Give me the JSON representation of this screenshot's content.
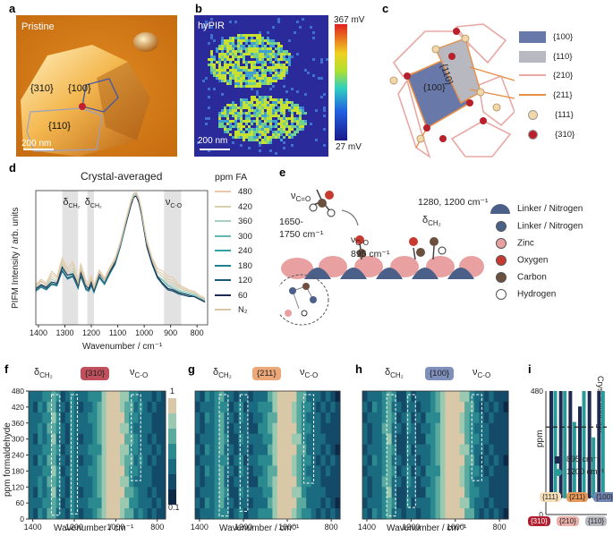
{
  "panel_labels": [
    "a",
    "b",
    "c",
    "d",
    "e",
    "f",
    "g",
    "h",
    "i"
  ],
  "panel_a": {
    "label": "Pristine",
    "scale_bar": "200 nm",
    "facets": [
      "{310}",
      "{100}",
      "{110}"
    ]
  },
  "panel_b": {
    "label": "hyPIR",
    "scale_bar": "200 nm",
    "colorbar_max": "367 mV",
    "colorbar_min": "27 mV"
  },
  "panel_c": {
    "inner_labels": [
      "{100}",
      "{110}"
    ],
    "legend": [
      {
        "label": "{100}",
        "color": "#6878a8"
      },
      {
        "label": "{110}",
        "color": "#b8b8c0"
      },
      {
        "label": "{210}",
        "color": "#e8a8a4"
      },
      {
        "label": "{211}",
        "color": "#e89048"
      },
      {
        "label": "{111}",
        "color": "#f2d8a8"
      },
      {
        "label": "{310}",
        "color": "#b8202c"
      }
    ]
  },
  "panel_d": {
    "title": "Crystal-averaged",
    "ylabel": "PIFM Intensity / arb. units",
    "xlabel": "Wavenumber / cm⁻¹",
    "bands": [
      {
        "sym": "δ",
        "sub": "CH₂"
      },
      {
        "sym": "δ",
        "sub": "CH₂"
      },
      {
        "sym": "ν",
        "sub": "C-O"
      }
    ],
    "legend_title": "ppm FA",
    "legend": [
      {
        "label": "480",
        "color": "#e8c8a8"
      },
      {
        "label": "420",
        "color": "#d8d0b0"
      },
      {
        "label": "360",
        "color": "#a8d0c0"
      },
      {
        "label": "300",
        "color": "#60b8b0"
      },
      {
        "label": "240",
        "color": "#30a0a0"
      },
      {
        "label": "180",
        "color": "#208090"
      },
      {
        "label": "120",
        "color": "#1e5878"
      },
      {
        "label": "60",
        "color": "#1e2a50"
      },
      {
        "label": "N₂",
        "color": "#d8c8a8"
      }
    ]
  },
  "panel_e": {
    "nu_co_double": "ν",
    "nu_co_double_sub": "C=O",
    "range_1": "1650-",
    "range_2": "1750 cm⁻¹",
    "nu_co": "ν",
    "nu_co_sub": "C-O",
    "nu_co_value": "895 cm⁻¹",
    "dch2_values": "1280, 1200 cm⁻¹",
    "dch2": "δ",
    "dch2_sub": "CH₂",
    "legend": [
      {
        "label": "Linker / Nitrogen",
        "color": "#4a6088",
        "shape": "dome"
      },
      {
        "label": "Linker / Nitrogen",
        "color": "#4a6088",
        "shape": "circle"
      },
      {
        "label": "Zinc",
        "color": "#e8a0a0",
        "shape": "circle"
      },
      {
        "label": "Oxygen",
        "color": "#c83a30",
        "shape": "circle"
      },
      {
        "label": "Carbon",
        "color": "#6b5040",
        "shape": "circle"
      },
      {
        "label": "Hydrogen",
        "color": "#ffffff",
        "shape": "circle"
      }
    ]
  },
  "heatmaps": {
    "ylabel": "ppm formaldehyde",
    "xlabel": "Wavenumber / cm⁻¹",
    "f": {
      "tag": "{310}",
      "tag_color": "#b8404c",
      "dch2": "δ",
      "dch2_sub": "CH₂",
      "nu": "ν",
      "nu_sub": "C-O"
    },
    "g": {
      "tag": "{211}",
      "tag_color": "#e8a070",
      "dch2": "δ",
      "dch2_sub": "CH₂",
      "nu": "ν",
      "nu_sub": "C-O"
    },
    "h": {
      "tag": "{100}",
      "tag_color": "#7484b0",
      "dch2": "δ",
      "dch2_sub": "CH₂",
      "nu": "ν",
      "nu_sub": "C-O"
    },
    "colorbar_max": "1",
    "colorbar_min": "0.1"
  },
  "panel_i": {
    "ylabel": "ppm",
    "side_label": "Crystal Average",
    "legend": [
      {
        "label": "895 cm⁻¹",
        "color": "#1e2a50"
      },
      {
        "label": "1200 cm⁻¹",
        "color": "#2a9a98"
      }
    ],
    "groups": [
      {
        "label": "{310}",
        "color": "#b02030"
      },
      {
        "label": "{210}",
        "color": "#e8b0a8"
      },
      {
        "label": "{110}",
        "color": "#b8b8c0"
      }
    ],
    "upper_tags": [
      {
        "label": "{111}",
        "color": "#f5e0b8"
      },
      {
        "label": "{211}",
        "color": "#e89858"
      },
      {
        "label": "{100}",
        "color": "#7484b0"
      }
    ]
  },
  "chart_data": [
    {
      "type": "line",
      "title": "Crystal-averaged",
      "xlabel": "Wavenumber / cm⁻¹",
      "ylabel": "PIFM Intensity / arb. units",
      "xlim": [
        1410,
        760
      ],
      "x_ticks": [
        1400,
        1300,
        1200,
        1100,
        1000,
        900,
        800
      ],
      "x": [
        1410,
        1390,
        1370,
        1350,
        1330,
        1310,
        1290,
        1270,
        1250,
        1240,
        1220,
        1210,
        1200,
        1190,
        1170,
        1150,
        1130,
        1110,
        1090,
        1070,
        1050,
        1040,
        1030,
        1020,
        1010,
        1000,
        990,
        970,
        950,
        930,
        910,
        890,
        870,
        850,
        830,
        810,
        790,
        770
      ],
      "series": [
        {
          "name": "480",
          "values": [
            0.3,
            0.34,
            0.31,
            0.4,
            0.36,
            0.5,
            0.42,
            0.47,
            0.33,
            0.46,
            0.33,
            0.31,
            0.37,
            0.29,
            0.41,
            0.35,
            0.43,
            0.5,
            0.62,
            0.78,
            0.93,
            0.98,
            0.99,
            0.95,
            0.86,
            0.74,
            0.63,
            0.5,
            0.42,
            0.4,
            0.36,
            0.35,
            0.3,
            0.28,
            0.26,
            0.25,
            0.22,
            0.2
          ]
        },
        {
          "name": "420",
          "values": [
            0.29,
            0.33,
            0.3,
            0.38,
            0.35,
            0.48,
            0.4,
            0.45,
            0.32,
            0.44,
            0.31,
            0.3,
            0.35,
            0.28,
            0.4,
            0.34,
            0.42,
            0.49,
            0.61,
            0.77,
            0.92,
            0.97,
            0.98,
            0.94,
            0.85,
            0.73,
            0.62,
            0.49,
            0.4,
            0.38,
            0.34,
            0.33,
            0.29,
            0.27,
            0.25,
            0.24,
            0.21,
            0.19
          ]
        },
        {
          "name": "360",
          "values": [
            0.27,
            0.3,
            0.28,
            0.34,
            0.32,
            0.44,
            0.37,
            0.4,
            0.3,
            0.4,
            0.28,
            0.27,
            0.32,
            0.26,
            0.37,
            0.32,
            0.4,
            0.47,
            0.6,
            0.76,
            0.91,
            0.97,
            0.98,
            0.93,
            0.84,
            0.72,
            0.6,
            0.47,
            0.37,
            0.34,
            0.3,
            0.29,
            0.26,
            0.25,
            0.24,
            0.23,
            0.21,
            0.18
          ]
        },
        {
          "name": "300",
          "values": [
            0.26,
            0.29,
            0.27,
            0.32,
            0.3,
            0.42,
            0.35,
            0.38,
            0.28,
            0.38,
            0.27,
            0.26,
            0.3,
            0.25,
            0.36,
            0.31,
            0.39,
            0.46,
            0.59,
            0.75,
            0.9,
            0.96,
            0.97,
            0.92,
            0.83,
            0.71,
            0.59,
            0.46,
            0.36,
            0.33,
            0.29,
            0.27,
            0.25,
            0.24,
            0.23,
            0.22,
            0.2,
            0.18
          ]
        },
        {
          "name": "240",
          "values": [
            0.25,
            0.28,
            0.26,
            0.31,
            0.29,
            0.41,
            0.34,
            0.37,
            0.27,
            0.37,
            0.26,
            0.25,
            0.29,
            0.24,
            0.35,
            0.3,
            0.38,
            0.45,
            0.58,
            0.74,
            0.89,
            0.95,
            0.96,
            0.91,
            0.82,
            0.7,
            0.58,
            0.45,
            0.35,
            0.31,
            0.27,
            0.26,
            0.24,
            0.23,
            0.22,
            0.21,
            0.19,
            0.17
          ]
        },
        {
          "name": "180",
          "values": [
            0.25,
            0.28,
            0.26,
            0.3,
            0.29,
            0.4,
            0.34,
            0.36,
            0.27,
            0.36,
            0.26,
            0.25,
            0.29,
            0.24,
            0.35,
            0.3,
            0.38,
            0.45,
            0.58,
            0.74,
            0.89,
            0.95,
            0.96,
            0.91,
            0.82,
            0.7,
            0.58,
            0.45,
            0.35,
            0.3,
            0.26,
            0.25,
            0.23,
            0.22,
            0.21,
            0.21,
            0.19,
            0.17
          ]
        },
        {
          "name": "120",
          "values": [
            0.26,
            0.29,
            0.27,
            0.3,
            0.3,
            0.4,
            0.35,
            0.36,
            0.28,
            0.36,
            0.27,
            0.26,
            0.3,
            0.25,
            0.36,
            0.31,
            0.39,
            0.46,
            0.59,
            0.74,
            0.89,
            0.95,
            0.96,
            0.91,
            0.82,
            0.7,
            0.58,
            0.45,
            0.35,
            0.3,
            0.26,
            0.25,
            0.23,
            0.22,
            0.21,
            0.21,
            0.19,
            0.17
          ]
        },
        {
          "name": "60",
          "values": [
            0.27,
            0.3,
            0.28,
            0.32,
            0.31,
            0.43,
            0.37,
            0.38,
            0.3,
            0.39,
            0.29,
            0.27,
            0.32,
            0.26,
            0.38,
            0.33,
            0.4,
            0.47,
            0.6,
            0.75,
            0.89,
            0.95,
            0.96,
            0.91,
            0.82,
            0.7,
            0.59,
            0.46,
            0.36,
            0.31,
            0.27,
            0.26,
            0.24,
            0.23,
            0.22,
            0.21,
            0.19,
            0.17
          ]
        },
        {
          "name": "N₂",
          "values": [
            0.28,
            0.32,
            0.29,
            0.36,
            0.33,
            0.46,
            0.39,
            0.42,
            0.31,
            0.42,
            0.3,
            0.29,
            0.34,
            0.27,
            0.39,
            0.33,
            0.41,
            0.48,
            0.6,
            0.76,
            0.91,
            0.96,
            0.97,
            0.93,
            0.84,
            0.72,
            0.61,
            0.48,
            0.39,
            0.36,
            0.32,
            0.31,
            0.28,
            0.26,
            0.25,
            0.24,
            0.21,
            0.19
          ]
        }
      ],
      "shaded_bands": [
        [
          1310,
          1250
        ],
        [
          1215,
          1190
        ],
        [
          925,
          860
        ]
      ]
    },
    {
      "type": "heatmap",
      "title": "{310}",
      "xlabel": "Wavenumber / cm⁻¹",
      "ylabel": "ppm formaldehyde",
      "ylim": [
        0,
        480
      ],
      "y_ticks": [
        0,
        60,
        120,
        180,
        240,
        300,
        360,
        420,
        480
      ],
      "x_ticks": [
        1400,
        1200,
        1000,
        800
      ],
      "columns": [
        0.35,
        0.3,
        0.45,
        0.4,
        0.55,
        0.7,
        0.45,
        0.3,
        0.28,
        0.5,
        0.35,
        0.3,
        0.35,
        0.42,
        0.5,
        0.62,
        0.78,
        0.92,
        1.0,
        0.98,
        0.85,
        0.7,
        0.55,
        0.45,
        0.38,
        0.35,
        0.3,
        0.28,
        0.25,
        0.22
      ],
      "boxes_cm": [
        [
          1310,
          1270
        ],
        [
          1215,
          1185
        ],
        [
          925,
          880
        ]
      ]
    },
    {
      "type": "heatmap",
      "title": "{211}",
      "xlabel": "Wavenumber / cm⁻¹",
      "ylim": [
        0,
        480
      ],
      "x_ticks": [
        1400,
        1200,
        1000,
        800
      ],
      "columns": [
        0.3,
        0.28,
        0.4,
        0.35,
        0.5,
        0.62,
        0.4,
        0.28,
        0.26,
        0.45,
        0.32,
        0.28,
        0.33,
        0.4,
        0.48,
        0.6,
        0.76,
        0.92,
        1.0,
        0.97,
        0.84,
        0.68,
        0.52,
        0.42,
        0.36,
        0.33,
        0.28,
        0.26,
        0.24,
        0.2
      ],
      "boxes_cm": [
        [
          1310,
          1270
        ],
        [
          1215,
          1180
        ],
        [
          925,
          880
        ]
      ]
    },
    {
      "type": "heatmap",
      "title": "{100}",
      "xlabel": "Wavenumber / cm⁻¹",
      "ylim": [
        0,
        480
      ],
      "x_ticks": [
        1400,
        1200,
        1000,
        800
      ],
      "columns": [
        0.3,
        0.26,
        0.38,
        0.35,
        0.52,
        0.66,
        0.42,
        0.26,
        0.24,
        0.44,
        0.3,
        0.26,
        0.3,
        0.4,
        0.5,
        0.62,
        0.78,
        0.93,
        1.0,
        0.97,
        0.84,
        0.68,
        0.52,
        0.4,
        0.34,
        0.3,
        0.26,
        0.24,
        0.22,
        0.18
      ],
      "boxes_cm": [
        [
          1310,
          1270
        ],
        [
          1215,
          1180
        ],
        [
          925,
          880
        ]
      ]
    },
    {
      "type": "bar",
      "title": "",
      "ylabel": "ppm",
      "ylim": [
        0,
        480
      ],
      "y_ticks": [
        0,
        480
      ],
      "categories": [
        "{310}",
        "{111}",
        "{210}",
        "{211}",
        "{110}",
        "{100}"
      ],
      "series": [
        {
          "name": "895 cm⁻¹",
          "values": [
            480,
            480,
            480,
            420,
            480,
            480
          ]
        },
        {
          "name": "1200 cm⁻¹",
          "values": [
            480,
            480,
            360,
            480,
            300,
            480
          ]
        }
      ],
      "crystal_average_ppm": 340
    }
  ]
}
